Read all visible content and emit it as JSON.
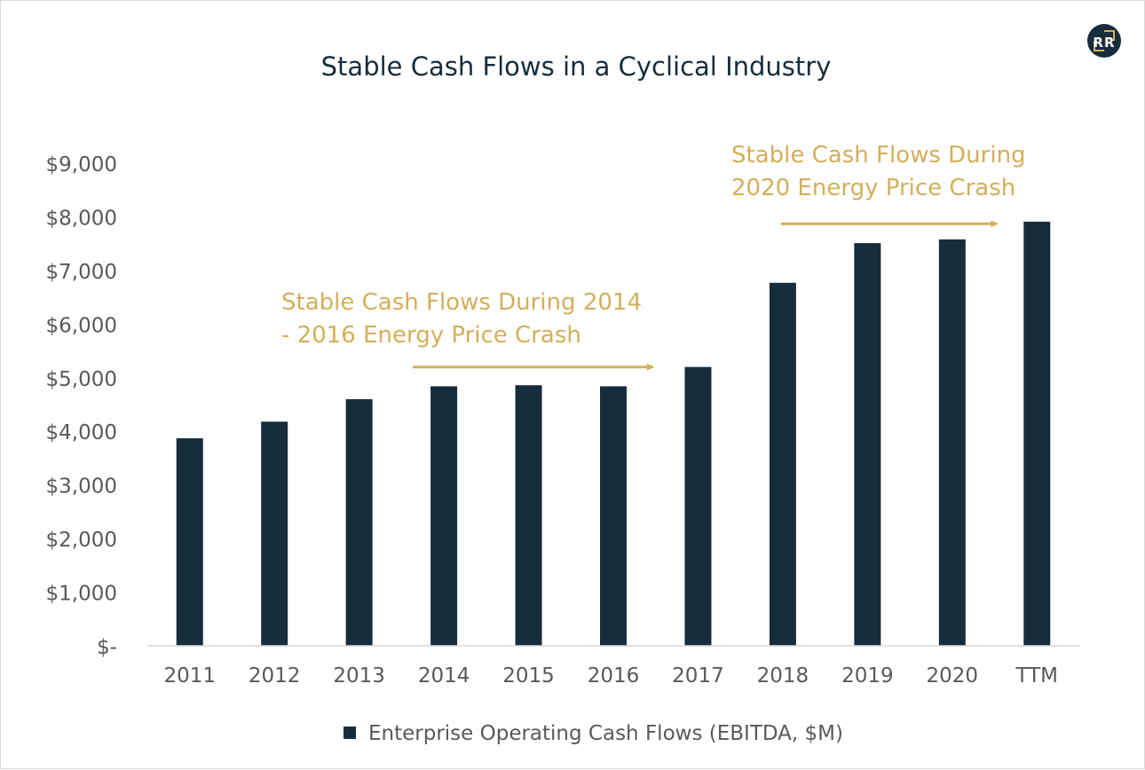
{
  "logo": {
    "letters": "RR",
    "bg_color": "#172d3c",
    "accent_color": "#d4af5a"
  },
  "chart_data": {
    "type": "bar",
    "title": "Stable Cash Flows in a Cyclical Industry",
    "categories": [
      "2011",
      "2012",
      "2013",
      "2014",
      "2015",
      "2016",
      "2017",
      "2018",
      "2019",
      "2020",
      "TTM"
    ],
    "series": [
      {
        "name": "Enterprise Operating Cash Flows (EBITDA, $M)",
        "values": [
          3870,
          4180,
          4600,
          4840,
          4860,
          4840,
          5200,
          6770,
          7510,
          7580,
          7910
        ],
        "color": "#172d3c"
      }
    ],
    "ylim": [
      0,
      9000
    ],
    "yticks": [
      {
        "value": 0,
        "label": "$-"
      },
      {
        "value": 1000,
        "label": "$1,000"
      },
      {
        "value": 2000,
        "label": "$2,000"
      },
      {
        "value": 3000,
        "label": "$3,000"
      },
      {
        "value": 4000,
        "label": "$4,000"
      },
      {
        "value": 5000,
        "label": "$5,000"
      },
      {
        "value": 6000,
        "label": "$6,000"
      },
      {
        "value": 7000,
        "label": "$7,000"
      },
      {
        "value": 8000,
        "label": "$8,000"
      },
      {
        "value": 9000,
        "label": "$9,000"
      }
    ],
    "grid": false,
    "legend_position": "bottom",
    "annotations": [
      {
        "lines": [
          "Stable Cash Flows During 2014",
          "- 2016 Energy Price Crash"
        ],
        "arrow_from": "2014",
        "arrow_to": "2016",
        "arrow_value": 5200,
        "color": "#d4af5a"
      },
      {
        "lines": [
          "Stable Cash Flows During",
          "2020 Energy Price Crash"
        ],
        "arrow_from": "2018",
        "arrow_to": "TTM",
        "arrow_value": 7870,
        "color": "#d4af5a"
      }
    ]
  }
}
